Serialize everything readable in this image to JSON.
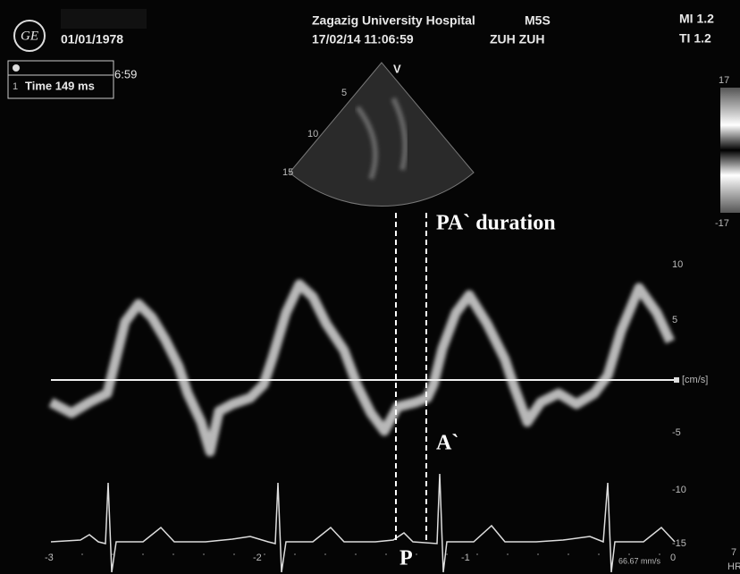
{
  "header": {
    "date": "01/01/1978",
    "hospital": "Zagazig University Hospital",
    "probe": "M5S",
    "datetime": "17/02/14 11:06:59",
    "operator": "ZUH ZUH",
    "mi": "MI 1.2",
    "ti": "TI 1.2"
  },
  "measurement": {
    "index": "1",
    "time": "Time 149 ms",
    "clock": "6:59"
  },
  "sector": {
    "label": "V",
    "depths": [
      "5",
      "10",
      "15"
    ]
  },
  "color_bar": {
    "top": "17",
    "bottom": "-17"
  },
  "velocity_scale": {
    "ticks": [
      "10",
      "5",
      "[cm/s]",
      "-5",
      "-10",
      "-15"
    ]
  },
  "time_scale": {
    "ticks": [
      "-3",
      "-2",
      "-1",
      "0"
    ]
  },
  "annotations": {
    "duration": "PA` duration",
    "a_wave": "A`",
    "p_wave": "P"
  },
  "ecg": {
    "sweep": "66.67 mm/s",
    "hr_value": "7",
    "hr": "HR"
  }
}
